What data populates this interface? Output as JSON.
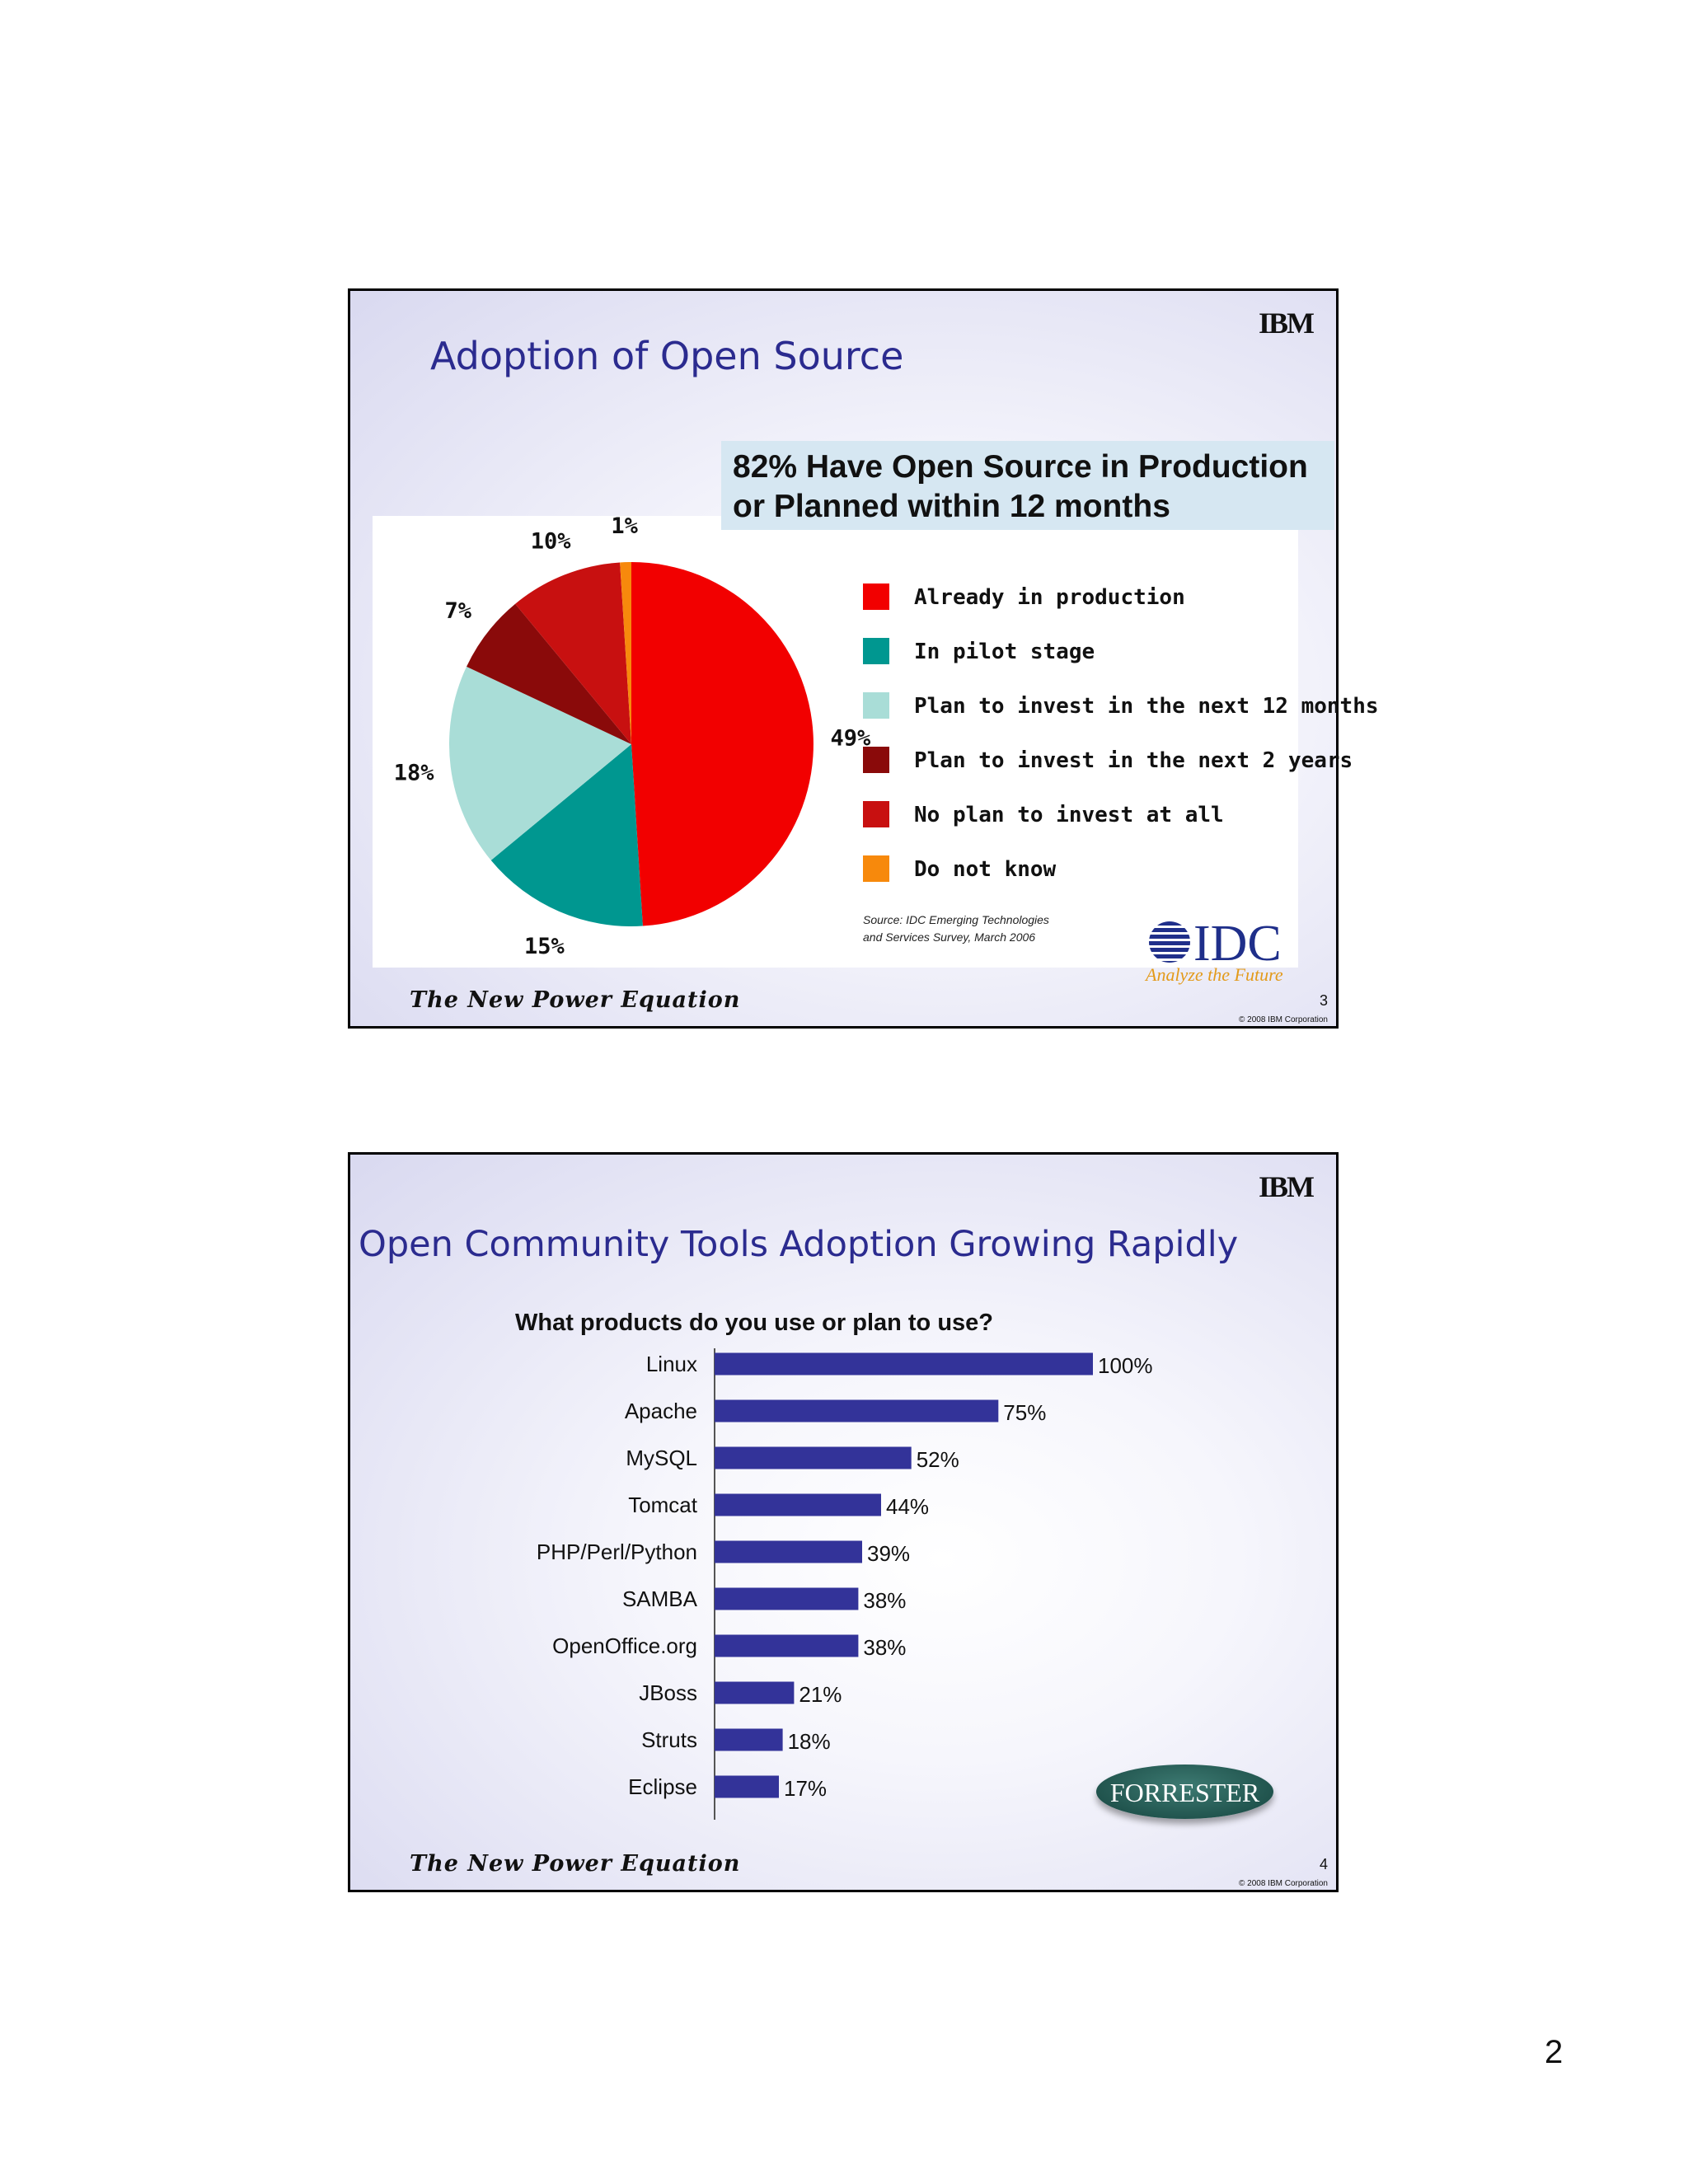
{
  "page": {
    "number": "2"
  },
  "slide1": {
    "logo": "IBM",
    "title": "Adoption of Open Source",
    "headline_line1": "82% Have Open Source in Production",
    "headline_line2": "or Planned within 12 months",
    "source_line1": "Source: IDC Emerging Technologies",
    "source_line2": "and Services Survey, March 2006",
    "idc_logo": "IDC",
    "idc_tagline": "Analyze the Future",
    "footer_brand": "The New Power Equation",
    "slide_number": "3",
    "copyright": "© 2008 IBM Corporation"
  },
  "slide2": {
    "logo": "IBM",
    "title": "Open Community Tools Adoption Growing Rapidly",
    "forrester_logo": "FORRESTER",
    "footer_brand": "The New Power Equation",
    "slide_number": "4",
    "copyright": "© 2008 IBM Corporation"
  },
  "chart_data": [
    {
      "type": "pie",
      "title": "82% Have Open Source in Production or Planned within 12 months",
      "legend_position": "right",
      "slices": [
        {
          "label": "Already in production",
          "value": 49,
          "value_label": "49%",
          "color": "#f20000"
        },
        {
          "label": "In pilot stage",
          "value": 15,
          "value_label": "15%",
          "color": "#009790"
        },
        {
          "label": "Plan to invest in the next 12 months",
          "value": 18,
          "value_label": "18%",
          "color": "#a9ddd7"
        },
        {
          "label": "Plan to invest in the next 2 years",
          "value": 7,
          "value_label": "7%",
          "color": "#8a0a0a"
        },
        {
          "label": "No plan to invest at all",
          "value": 10,
          "value_label": "10%",
          "color": "#c81010"
        },
        {
          "label": "Do not know",
          "value": 1,
          "value_label": "1%",
          "color": "#f7890c"
        }
      ]
    },
    {
      "type": "bar",
      "orientation": "horizontal",
      "title": "What products do you use or plan to use?",
      "categories": [
        "Linux",
        "Apache",
        "MySQL",
        "Tomcat",
        "PHP/Perl/Python",
        "SAMBA",
        "OpenOffice.org",
        "JBoss",
        "Struts",
        "Eclipse"
      ],
      "values": [
        100,
        75,
        52,
        44,
        39,
        38,
        38,
        21,
        18,
        17
      ],
      "value_labels": [
        "100%",
        "75%",
        "52%",
        "44%",
        "39%",
        "38%",
        "38%",
        "21%",
        "18%",
        "17%"
      ],
      "xlim": [
        0,
        100
      ],
      "grid": false,
      "bar_color": "#333399"
    }
  ]
}
